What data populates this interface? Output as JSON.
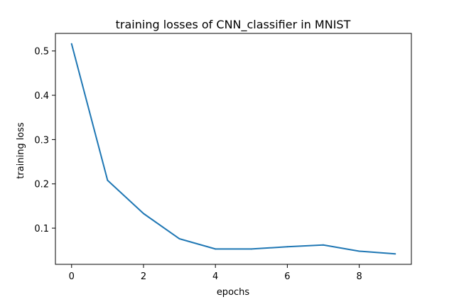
{
  "chart_data": {
    "type": "line",
    "title": "training losses of CNN_classifier in MNIST",
    "xlabel": "epochs",
    "ylabel": "training loss",
    "x": [
      0,
      1,
      2,
      3,
      4,
      5,
      6,
      7,
      8,
      9
    ],
    "series": [
      {
        "values": [
          0.516,
          0.208,
          0.133,
          0.076,
          0.053,
          0.053,
          0.058,
          0.062,
          0.048,
          0.042
        ],
        "color": "#1f77b4"
      }
    ],
    "xlim": [
      -0.45,
      9.45
    ],
    "ylim": [
      0.0183,
      0.5397
    ],
    "xticks": [
      0,
      2,
      4,
      6,
      8
    ],
    "xtick_labels": [
      "0",
      "2",
      "4",
      "6",
      "8"
    ],
    "yticks": [
      0.1,
      0.2,
      0.3,
      0.4,
      0.5
    ],
    "ytick_labels": [
      "0.1",
      "0.2",
      "0.3",
      "0.4",
      "0.5"
    ],
    "grid": false,
    "legend": "none"
  }
}
